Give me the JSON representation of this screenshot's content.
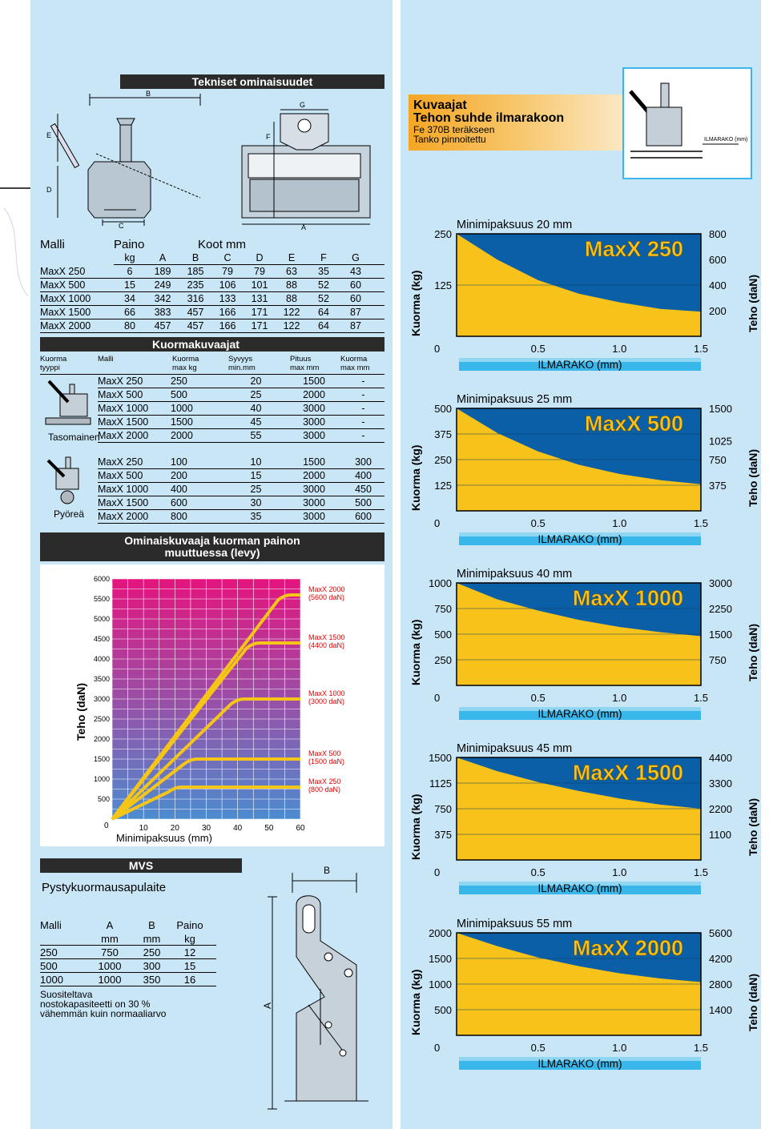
{
  "left": {
    "specs_title": "Tekniset ominaisuudet",
    "diagram_labels": {
      "b": "B",
      "e": "E",
      "d": "D",
      "c": "C",
      "g": "G",
      "f": "F",
      "a": "A"
    },
    "dims_table": {
      "headers": [
        "Malli",
        "Paino",
        "Koot mm"
      ],
      "sub": [
        "kg",
        "A",
        "B",
        "C",
        "D",
        "E",
        "F",
        "G"
      ],
      "rows": [
        [
          "MaxX 250",
          "6",
          "189",
          "185",
          "79",
          "79",
          "63",
          "35",
          "43"
        ],
        [
          "MaxX 500",
          "15",
          "249",
          "235",
          "106",
          "101",
          "88",
          "52",
          "60"
        ],
        [
          "MaxX 1000",
          "34",
          "342",
          "316",
          "133",
          "131",
          "88",
          "52",
          "60"
        ],
        [
          "MaxX 1500",
          "66",
          "383",
          "457",
          "166",
          "171",
          "122",
          "64",
          "87"
        ],
        [
          "MaxX 2000",
          "80",
          "457",
          "457",
          "166",
          "171",
          "122",
          "64",
          "87"
        ]
      ]
    },
    "load_title": "Kuormakuvaajat",
    "load_headers": {
      "c1": "Kuorma",
      "c1b": "tyyppi",
      "c2": "Malli",
      "c3": "Kuorma",
      "c3b": "max kg",
      "c4": "Syvyys",
      "c4b": "min.mm",
      "c5": "Pituus",
      "c5b": "max mm",
      "c6": "Kuorma",
      "c6b": "max mm"
    },
    "type_flat": "Tasomainen",
    "type_round": "Pyöreä",
    "flat_rows": [
      [
        "MaxX 250",
        "250",
        "20",
        "1500",
        "-"
      ],
      [
        "MaxX 500",
        "500",
        "25",
        "2000",
        "-"
      ],
      [
        "MaxX 1000",
        "1000",
        "40",
        "3000",
        "-"
      ],
      [
        "MaxX 1500",
        "1500",
        "45",
        "3000",
        "-"
      ],
      [
        "MaxX 2000",
        "2000",
        "55",
        "3000",
        "-"
      ]
    ],
    "round_rows": [
      [
        "MaxX 250",
        "100",
        "10",
        "1500",
        "300"
      ],
      [
        "MaxX 500",
        "200",
        "15",
        "2000",
        "400"
      ],
      [
        "MaxX 1000",
        "400",
        "25",
        "3000",
        "450"
      ],
      [
        "MaxX 1500",
        "600",
        "30",
        "3000",
        "500"
      ],
      [
        "MaxX 2000",
        "800",
        "35",
        "3000",
        "600"
      ]
    ],
    "perf_title_1": "Ominaiskuvaaja kuorman painon",
    "perf_title_2": "muuttuessa (levy)",
    "mvs_title": "MVS",
    "mvs_subtitle": "Pystykuormausapulaite",
    "mvs_table": {
      "headers": [
        "Malli",
        "A",
        "B",
        "Paino"
      ],
      "units": [
        "",
        "mm",
        "mm",
        "kg"
      ],
      "rows": [
        [
          "250",
          "750",
          "250",
          "12"
        ],
        [
          "500",
          "1000",
          "300",
          "15"
        ],
        [
          "1000",
          "1000",
          "350",
          "16"
        ]
      ]
    },
    "mvs_note_1": "Suositeltava",
    "mvs_note_2": "nostokapasiteetti on 30 %",
    "mvs_note_3": "vähemmän kuin normaaliarvo",
    "mvs_diagram_labels": {
      "b": "B",
      "a": "A"
    }
  },
  "right": {
    "header_title": "Kuvaajat",
    "header_sub": "Tehon suhde ilmarakoon",
    "header_l3": "Fe 370B teräkseen",
    "header_l4": "Tanko pinnoitettu",
    "header_image_label": "ILMARAKO (mm)"
  },
  "chart_data": [
    {
      "type": "line",
      "xlabel": "Minimipaksuus (mm)",
      "ylabel": "Teho (daN)",
      "x_ticks": [
        "0",
        "10",
        "20",
        "30",
        "40",
        "50",
        "60"
      ],
      "y_ticks": [
        "500",
        "1000",
        "1500",
        "2000",
        "2500",
        "3000",
        "3500",
        "4000",
        "4500",
        "5000",
        "5500",
        "6000"
      ],
      "ylim": [
        0,
        6000
      ],
      "xlim": [
        0,
        60
      ],
      "series": [
        {
          "name": "MaxX 2000",
          "label2": "(5600 daN)",
          "x": [
            0,
            55,
            60
          ],
          "y": [
            0,
            5600,
            5600
          ]
        },
        {
          "name": "MaxX 1500",
          "label2": "(4400 daN)",
          "x": [
            0,
            45,
            60
          ],
          "y": [
            0,
            4400,
            4400
          ]
        },
        {
          "name": "MaxX 1000",
          "label2": "(3000 daN)",
          "x": [
            0,
            40,
            60
          ],
          "y": [
            0,
            3000,
            3000
          ]
        },
        {
          "name": "MaxX 500",
          "label2": "(1500 daN)",
          "x": [
            0,
            25,
            60
          ],
          "y": [
            0,
            1500,
            1500
          ]
        },
        {
          "name": "MaxX 250",
          "label2": "(800 daN)",
          "x": [
            0,
            20,
            60
          ],
          "y": [
            0,
            800,
            800
          ]
        }
      ]
    },
    {
      "type": "area",
      "title": "Minimipaksuus 20 mm",
      "model": "MaxX 250",
      "ylabel": "Kuorma (kg)",
      "y2label": "Teho (daN)",
      "xlabel": "ILMARAKO (mm)",
      "xlim": [
        0,
        1.5
      ],
      "x_ticks": [
        "0",
        "0.5",
        "1.0",
        "1.5"
      ],
      "y_ticks": [
        "125",
        "250"
      ],
      "ymax": 250,
      "y2_ticks": [
        "200",
        "400",
        "600",
        "800"
      ],
      "y2max": 800,
      "x": [
        0,
        0.25,
        0.5,
        0.75,
        1.0,
        1.25,
        1.5
      ],
      "y": [
        250,
        187,
        137,
        104,
        83,
        67,
        60
      ]
    },
    {
      "type": "area",
      "title": "Minimipaksuus 25 mm",
      "model": "MaxX 500",
      "ylabel": "Kuorma (kg)",
      "y2label": "Teho (daN)",
      "xlabel": "ILMARAKO (mm)",
      "xlim": [
        0,
        1.5
      ],
      "x_ticks": [
        "0",
        "0.5",
        "1.0",
        "1.5"
      ],
      "y_ticks": [
        "125",
        "250",
        "375",
        "500"
      ],
      "ymax": 500,
      "y2_ticks": [
        "375",
        "750",
        "1025",
        "1500"
      ],
      "y2max": 1500,
      "x": [
        0,
        0.25,
        0.5,
        0.75,
        1.0,
        1.25,
        1.5
      ],
      "y": [
        500,
        380,
        290,
        225,
        180,
        150,
        130
      ]
    },
    {
      "type": "area",
      "title": "Minimipaksuus 40 mm",
      "model": "MaxX 1000",
      "ylabel": "Kuorma (kg)",
      "y2label": "Teho (daN)",
      "xlabel": "ILMARAKO (mm)",
      "xlim": [
        0,
        1.5
      ],
      "x_ticks": [
        "0",
        "0.5",
        "1.0",
        "1.5"
      ],
      "y_ticks": [
        "250",
        "500",
        "750",
        "1000"
      ],
      "ymax": 1000,
      "y2_ticks": [
        "750",
        "1500",
        "2250",
        "3000"
      ],
      "y2max": 3000,
      "x": [
        0,
        0.25,
        0.5,
        0.75,
        1.0,
        1.25,
        1.5
      ],
      "y": [
        1000,
        840,
        730,
        640,
        570,
        520,
        480
      ]
    },
    {
      "type": "area",
      "title": "Minimipaksuus 45 mm",
      "model": "MaxX 1500",
      "ylabel": "Kuorma (kg)",
      "y2label": "Teho (daN)",
      "xlabel": "ILMARAKO (mm)",
      "xlim": [
        0,
        1.5
      ],
      "x_ticks": [
        "0",
        "0.5",
        "1.0",
        "1.5"
      ],
      "y_ticks": [
        "375",
        "750",
        "1125",
        "1500"
      ],
      "ymax": 1500,
      "y2_ticks": [
        "1100",
        "2200",
        "3300",
        "4400"
      ],
      "y2max": 4400,
      "x": [
        0,
        0.25,
        0.5,
        0.75,
        1.0,
        1.25,
        1.5
      ],
      "y": [
        1500,
        1300,
        1140,
        1010,
        900,
        810,
        750
      ]
    },
    {
      "type": "area",
      "title": "Minimipaksuus 55 mm",
      "model": "MaxX 2000",
      "ylabel": "Kuorma (kg)",
      "y2label": "Teho (daN)",
      "xlabel": "ILMARAKO (mm)",
      "xlim": [
        0,
        1.5
      ],
      "x_ticks": [
        "0",
        "0.5",
        "1.0",
        "1.5"
      ],
      "y_ticks": [
        "500",
        "1000",
        "1500",
        "2000"
      ],
      "ymax": 2000,
      "y2_ticks": [
        "1400",
        "2800",
        "4200",
        "5600"
      ],
      "y2max": 5600,
      "x": [
        0,
        0.25,
        0.5,
        0.75,
        1.0,
        1.25,
        1.5
      ],
      "y": [
        2000,
        1740,
        1520,
        1350,
        1210,
        1110,
        1040
      ]
    }
  ],
  "colors": {
    "panel_bg": "#c9e6f7",
    "chart_blue": "#0a5fa6",
    "chart_yellow": "#f7c21a",
    "bar_blue": "#39b6ea",
    "dark": "#2b2b2b"
  }
}
